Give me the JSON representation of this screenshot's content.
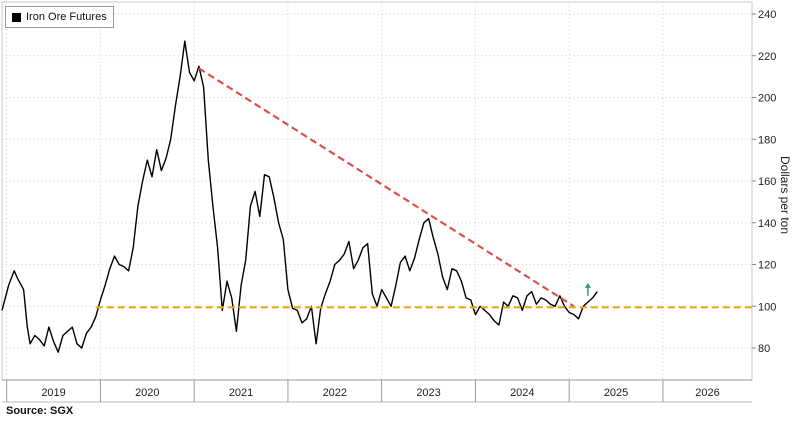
{
  "chart_data": {
    "type": "line",
    "title": "",
    "legend": {
      "label": "Iron Ore Futures",
      "position": "top-left"
    },
    "ylabel": "Dollars per ton",
    "xlabel": "",
    "ylim": [
      70,
      240
    ],
    "yticks": [
      80,
      100,
      120,
      140,
      160,
      180,
      200,
      220,
      240
    ],
    "xlim": [
      2018.95,
      2026.95
    ],
    "year_labels": [
      "2019",
      "2020",
      "2021",
      "2022",
      "2023",
      "2024",
      "2025",
      "2026"
    ],
    "grid": true,
    "series": [
      {
        "name": "Iron Ore Futures",
        "color": "#000000",
        "x": [
          2018.95,
          2019.02,
          2019.08,
          2019.12,
          2019.18,
          2019.22,
          2019.25,
          2019.3,
          2019.35,
          2019.4,
          2019.45,
          2019.5,
          2019.55,
          2019.6,
          2019.65,
          2019.7,
          2019.75,
          2019.8,
          2019.85,
          2019.9,
          2019.95,
          2020.0,
          2020.05,
          2020.1,
          2020.15,
          2020.2,
          2020.25,
          2020.3,
          2020.35,
          2020.4,
          2020.45,
          2020.5,
          2020.55,
          2020.6,
          2020.65,
          2020.7,
          2020.75,
          2020.8,
          2020.85,
          2020.9,
          2020.95,
          2021.0,
          2021.05,
          2021.1,
          2021.15,
          2021.2,
          2021.25,
          2021.3,
          2021.35,
          2021.4,
          2021.45,
          2021.5,
          2021.55,
          2021.6,
          2021.65,
          2021.7,
          2021.75,
          2021.8,
          2021.85,
          2021.9,
          2021.95,
          2022.0,
          2022.05,
          2022.1,
          2022.15,
          2022.2,
          2022.25,
          2022.3,
          2022.35,
          2022.4,
          2022.45,
          2022.5,
          2022.55,
          2022.6,
          2022.65,
          2022.7,
          2022.75,
          2022.8,
          2022.85,
          2022.9,
          2022.95,
          2023.0,
          2023.05,
          2023.1,
          2023.15,
          2023.2,
          2023.25,
          2023.3,
          2023.35,
          2023.4,
          2023.45,
          2023.5,
          2023.55,
          2023.6,
          2023.65,
          2023.7,
          2023.75,
          2023.8,
          2023.85,
          2023.9,
          2023.95,
          2024.0,
          2024.05,
          2024.1,
          2024.15,
          2024.2,
          2024.25,
          2024.3,
          2024.35,
          2024.4,
          2024.45,
          2024.5,
          2024.55,
          2024.6,
          2024.65,
          2024.7,
          2024.75,
          2024.8,
          2024.85,
          2024.9,
          2024.95,
          2025.0,
          2025.05,
          2025.1,
          2025.15,
          2025.2,
          2025.25,
          2025.3
        ],
        "values": [
          98,
          110,
          117,
          113,
          108,
          90,
          82,
          86,
          84,
          81,
          90,
          83,
          78,
          86,
          88,
          90,
          82,
          80,
          87,
          90,
          95,
          103,
          110,
          118,
          124,
          120,
          119,
          117,
          128,
          148,
          160,
          170,
          162,
          175,
          165,
          171,
          180,
          196,
          210,
          227,
          212,
          208,
          215,
          205,
          170,
          148,
          128,
          98,
          112,
          104,
          88,
          110,
          122,
          148,
          155,
          143,
          163,
          162,
          152,
          140,
          132,
          108,
          99,
          98,
          92,
          94,
          100,
          82,
          99,
          106,
          112,
          120,
          122,
          125,
          131,
          118,
          122,
          128,
          130,
          106,
          100,
          108,
          104,
          100,
          110,
          121,
          124,
          117,
          123,
          132,
          140,
          142,
          133,
          125,
          114,
          108,
          118,
          117,
          112,
          104,
          103,
          96,
          100,
          98,
          96,
          93,
          91,
          102,
          100,
          105,
          104,
          98,
          105,
          107,
          101,
          104,
          103,
          101,
          100,
          105,
          100,
          97,
          96,
          94,
          100,
          102,
          104,
          107
        ]
      },
      {
        "name": "Downtrend line",
        "color": "#e0504a",
        "style": "dashed",
        "x": [
          2021.05,
          2025.05
        ],
        "values": [
          214,
          100
        ]
      },
      {
        "name": "Support line",
        "color": "#e8a81a",
        "style": "dashed",
        "x": [
          2019.95,
          2026.95
        ],
        "values": [
          99.5,
          99.5
        ]
      }
    ],
    "annotations": [
      {
        "type": "up-arrow",
        "x": 2025.2,
        "y": 105,
        "color": "#2e9e6a"
      }
    ]
  },
  "footer": {
    "source": "Source:  SGX"
  }
}
